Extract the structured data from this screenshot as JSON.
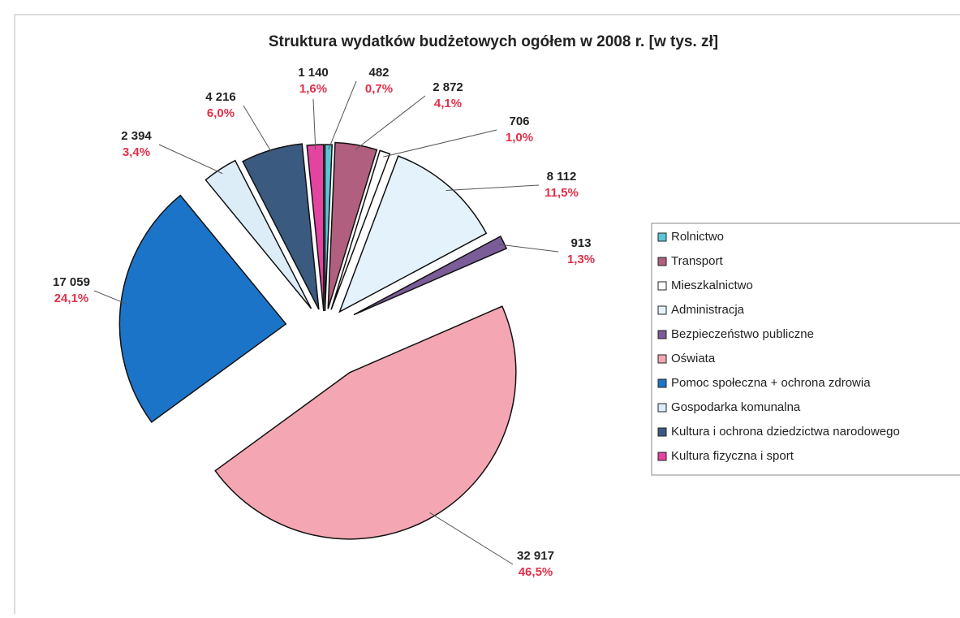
{
  "chart_data": {
    "type": "pie",
    "title": "Struktura wydatków budżetowych ogółem w 2008 r. [w tys. zł]",
    "categories": [
      "Rolnictwo",
      "Transport",
      "Mieszkalnictwo",
      "Administracja",
      "Bezpieczeństwo publiczne",
      "Oświata",
      "Pomoc społeczna + ochrona zdrowia",
      "Gospodarka komunalna",
      "Kultura i ochrona dziedzictwa narodowego",
      "Kultura fizyczna i sport"
    ],
    "values": [
      482,
      2872,
      706,
      8112,
      913,
      32917,
      17059,
      2394,
      4216,
      1140
    ],
    "value_labels": [
      "482",
      "2 872",
      "706",
      "8 112",
      "913",
      "32 917",
      "17 059",
      "2 394",
      "4 216",
      "1 140"
    ],
    "percent_labels": [
      "0,7%",
      "4,1%",
      "1,0%",
      "11,5%",
      "1,3%",
      "46,5%",
      "24,1%",
      "3,4%",
      "6,0%",
      "1,6%"
    ],
    "colors": [
      "#5cc6d8",
      "#b0607e",
      "#ffffff",
      "#e4f3fb",
      "#7a5c98",
      "#f4a7b2",
      "#1c74c9",
      "#dcedf8",
      "#3b5a80",
      "#e2449f"
    ],
    "legend": "right"
  }
}
